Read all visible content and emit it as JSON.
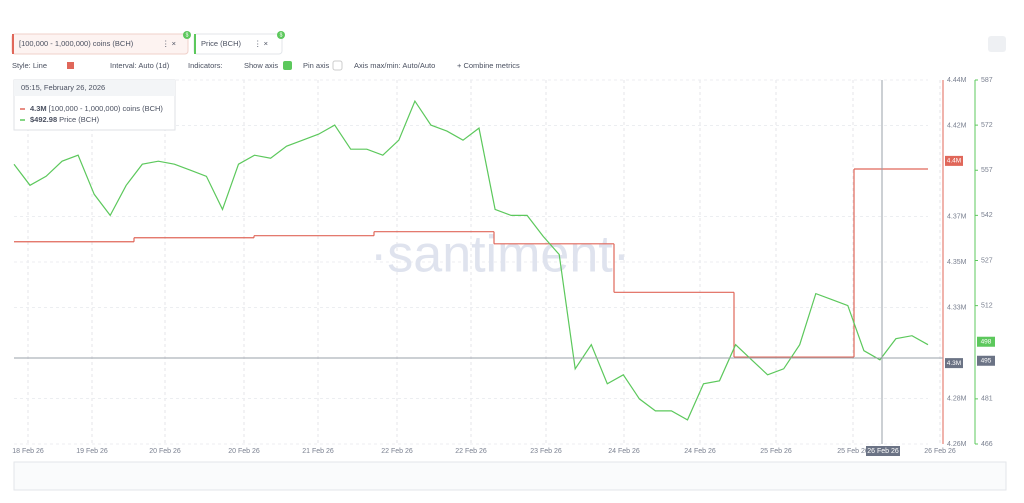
{
  "toolbar": {
    "metric1": "[100,000 - 1,000,000) coins (BCH)",
    "metric1_badge": "$",
    "metric2": "Price (BCH)",
    "metric2_badge": "$",
    "style": "Style: Line",
    "interval": "Interval: Auto (1d)",
    "indicators": "Indicators:",
    "show_axis": "Show axis",
    "pin_axis": "Pin axis",
    "axis_minmax": "Axis max/min: Auto/Auto",
    "combine": "+ Combine metrics"
  },
  "tooltip": {
    "date": "05:15, February 26, 2026",
    "rows": [
      {
        "value": 4.3,
        "label": "4.3M",
        "name": "[100,000 - 1,000,000) coins (BCH)"
      },
      {
        "value": 492.98,
        "label": "$492.98",
        "name": "Price (BCH)"
      }
    ]
  },
  "chart_data": {
    "type": "line",
    "watermark": "·santiment·",
    "x_tick_labels": [
      "18 Feb 26",
      "19 Feb 26",
      "20 Feb 26",
      "20 Feb 26",
      "21 Feb 26",
      "22 Feb 26",
      "22 Feb 26",
      "23 Feb 26",
      "24 Feb 26",
      "24 Feb 26",
      "25 Feb 26",
      "25 Feb 26",
      "26 Feb 26"
    ],
    "crosshair_label": "26 Feb 26",
    "ylim": [
      4.26,
      4.44
    ],
    "yticks": [
      {
        "value": 4.26,
        "label": "4.26M"
      },
      {
        "value": 4.2825,
        "label": "4.28M"
      },
      {
        "value": 4.3275,
        "label": "4.33M"
      },
      {
        "value": 4.35,
        "label": "4.35M"
      },
      {
        "value": 4.3725,
        "label": "4.37M"
      },
      {
        "value": 4.4175,
        "label": "4.42M"
      },
      {
        "value": 4.44,
        "label": "4.44M"
      }
    ],
    "y2lim": [
      466,
      587
    ],
    "y2ticks": [
      466,
      481,
      512,
      527,
      542,
      557,
      572,
      587
    ],
    "series": [
      {
        "name": "[100,000 - 1,000,000) coins (BCH)",
        "color": "#e0675a",
        "step": true,
        "values": [
          4.36,
          4.362,
          4.363,
          4.365,
          4.359,
          4.335,
          4.303,
          4.396
        ],
        "tag": {
          "value": 4.4,
          "label": "4.4M"
        },
        "cross_tag": {
          "value": 4.3,
          "label": "4.3M"
        }
      },
      {
        "name": "Price (BCH)",
        "color": "#5cc85c",
        "axis": "y2",
        "values": [
          559,
          552,
          555,
          560,
          562,
          549,
          542,
          552,
          559,
          560,
          559,
          557,
          555,
          544,
          559,
          562,
          561,
          565,
          567,
          569,
          572,
          564,
          564,
          562,
          567,
          580,
          572,
          570,
          567,
          571,
          544,
          542,
          542,
          535,
          529,
          491,
          499,
          486,
          489,
          481,
          477,
          477,
          474,
          486,
          487,
          499,
          494,
          489,
          491,
          499,
          516,
          514,
          512,
          497,
          494,
          501,
          502,
          499
        ],
        "tag": 498,
        "cross_tag": 495
      }
    ]
  }
}
